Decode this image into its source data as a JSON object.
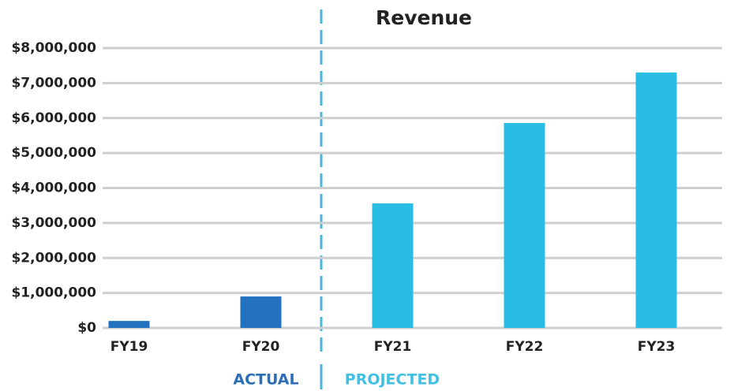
{
  "chart_data": {
    "type": "bar",
    "title": "Revenue",
    "categories": [
      "FY19",
      "FY20",
      "FY21",
      "FY22",
      "FY23"
    ],
    "values": [
      200000,
      900000,
      3560000,
      5860000,
      7300000
    ],
    "colors": [
      "#2371c1",
      "#2371c1",
      "#29bce4",
      "#29bce4",
      "#29bce4"
    ],
    "ylim": [
      0,
      8000000
    ],
    "yticks": [
      {
        "value": 0,
        "label": "$0"
      },
      {
        "value": 1000000,
        "label": "$1,000,000"
      },
      {
        "value": 2000000,
        "label": "$2,000,000"
      },
      {
        "value": 3000000,
        "label": "$3,000,000"
      },
      {
        "value": 4000000,
        "label": "$4,000,000"
      },
      {
        "value": 5000000,
        "label": "$5,000,000"
      },
      {
        "value": 6000000,
        "label": "$6,000,000"
      },
      {
        "value": 7000000,
        "label": "$7,000,000"
      },
      {
        "value": 8000000,
        "label": "$8,000,000"
      }
    ],
    "grid": true,
    "annotations": [
      {
        "text": "ACTUAL",
        "color": "#2d6fb6"
      },
      {
        "text": "PROJECTED",
        "color": "#3fc0e4"
      }
    ]
  }
}
